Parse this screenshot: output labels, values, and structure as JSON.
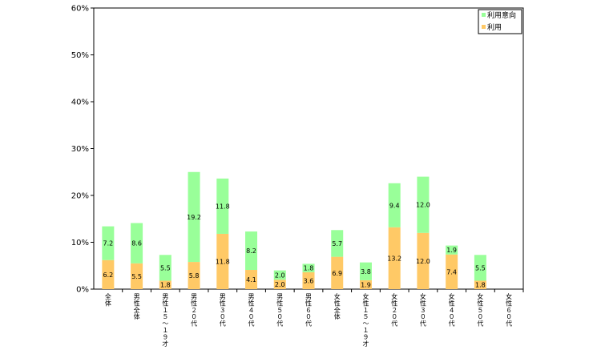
{
  "chart_data": {
    "type": "bar",
    "stacked": true,
    "categories": [
      "全体",
      "男性全体",
      "男性１５～１９才",
      "男性２０代",
      "男性３０代",
      "男性４０代",
      "男性５０代",
      "男性６０代",
      "女性全体",
      "女性１５～１９才",
      "女性２０代",
      "女性３０代",
      "女性４０代",
      "女性５０代",
      "女性６０代"
    ],
    "series": [
      {
        "name": "利用",
        "color": "#FFC966",
        "values": [
          6.2,
          5.5,
          1.8,
          5.8,
          11.8,
          4.1,
          2.0,
          3.6,
          6.9,
          1.9,
          13.2,
          12.0,
          7.4,
          1.8,
          0
        ]
      },
      {
        "name": "利用意向",
        "color": "#99FF99",
        "values": [
          7.2,
          8.6,
          5.5,
          19.2,
          11.8,
          8.2,
          2.0,
          1.8,
          5.7,
          3.8,
          9.4,
          12.0,
          1.9,
          5.5,
          0
        ]
      }
    ],
    "y_ticks": [
      "0%",
      "10%",
      "20%",
      "30%",
      "40%",
      "50%",
      "60%"
    ],
    "ylim": [
      0,
      60
    ],
    "legend": {
      "placement": "top-right"
    },
    "grid": false
  }
}
